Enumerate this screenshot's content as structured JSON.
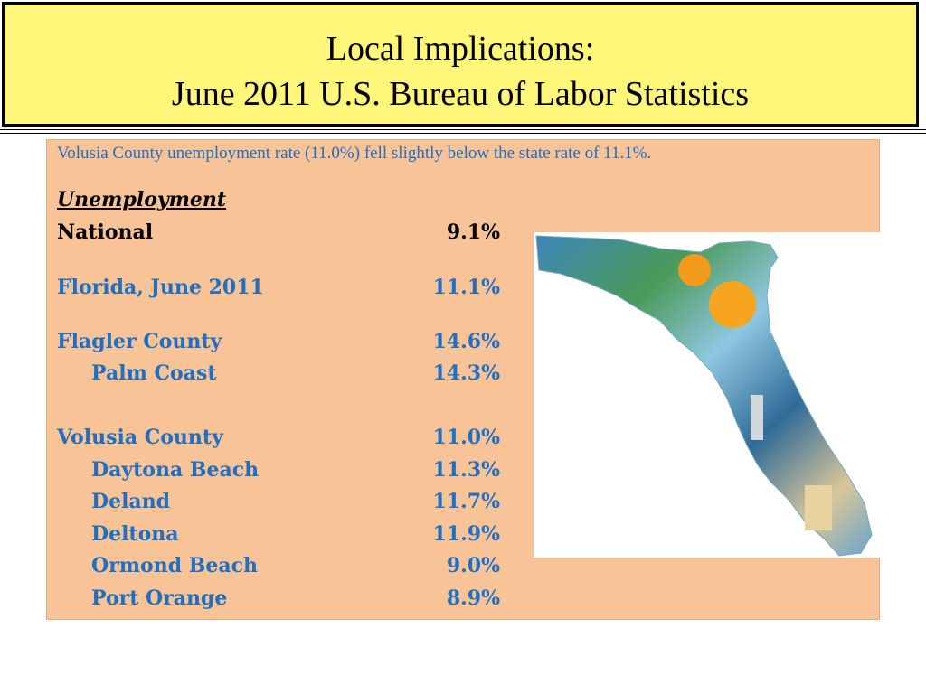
{
  "title": {
    "line1": "Local Implications:",
    "line2": "June 2011 U.S. Bureau of Labor Statistics"
  },
  "intro_text": "Volusia County unemployment rate (11.0%) fell slightly below the state rate of 11.1%.",
  "section_heading": "Unemployment",
  "rows": [
    {
      "label": "National",
      "value": "9.1%"
    },
    {
      "label": "Florida, June 2011",
      "value": "11.1%"
    },
    {
      "label": "Flagler County",
      "value": "14.6%"
    },
    {
      "label": "Palm Coast",
      "value": "14.3%"
    },
    {
      "label": "Volusia County",
      "value": "11.0%"
    },
    {
      "label": "Daytona Beach",
      "value": "11.3%"
    },
    {
      "label": "Deland",
      "value": "11.7%"
    },
    {
      "label": "Deltona",
      "value": "11.9%"
    },
    {
      "label": "Ormond Beach",
      "value": "9.0%"
    },
    {
      "label": "Port Orange",
      "value": "8.9%"
    }
  ],
  "colors": {
    "title_background": "#fff67a",
    "content_background": "#f8c396",
    "blue_text": "#1f6fc4"
  },
  "map_image": "florida-collage-map"
}
